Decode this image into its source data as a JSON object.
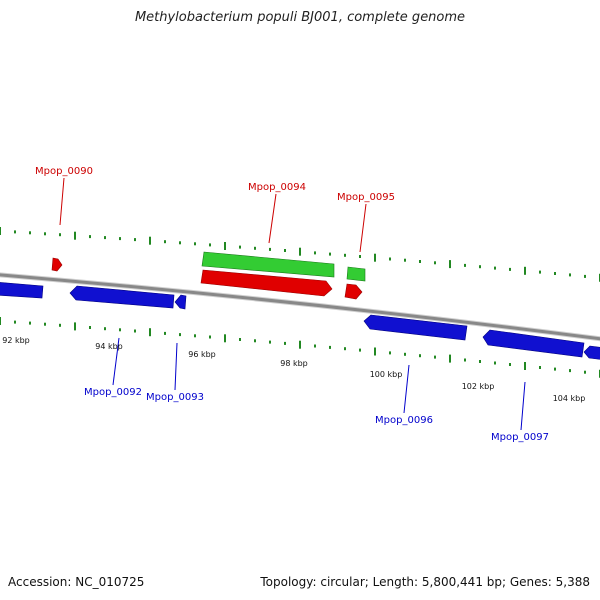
{
  "title": "Methylobacterium populi BJ001, complete genome",
  "footer": {
    "accession": "Accession: NC_010725",
    "stats": "Topology: circular; Length: 5,800,441 bp; Genes: 5,388"
  },
  "colors": {
    "backbone": "#888888",
    "forward_gene": "#e00000",
    "reverse_gene": "#1010d0",
    "rna_gene": "#33cc33",
    "forward_label": "#cc0000",
    "reverse_label": "#0000cc",
    "tick": "#228822"
  },
  "scale_labels": [
    "92 kbp",
    "94 kbp",
    "96 kbp",
    "98 kbp",
    "100 kbp",
    "102 kbp",
    "104 kbp"
  ],
  "genes": [
    {
      "id": "Mpop_0090",
      "strand": "forward",
      "type": "cds"
    },
    {
      "id": "Mpop_0094",
      "strand": "forward",
      "type": "cds"
    },
    {
      "id": "Mpop_0095",
      "strand": "forward",
      "type": "cds"
    },
    {
      "id": "Mpop_0092",
      "strand": "reverse",
      "type": "cds"
    },
    {
      "id": "Mpop_0093",
      "strand": "reverse",
      "type": "cds"
    },
    {
      "id": "Mpop_0096",
      "strand": "reverse",
      "type": "cds"
    },
    {
      "id": "Mpop_0097",
      "strand": "reverse",
      "type": "cds"
    }
  ]
}
